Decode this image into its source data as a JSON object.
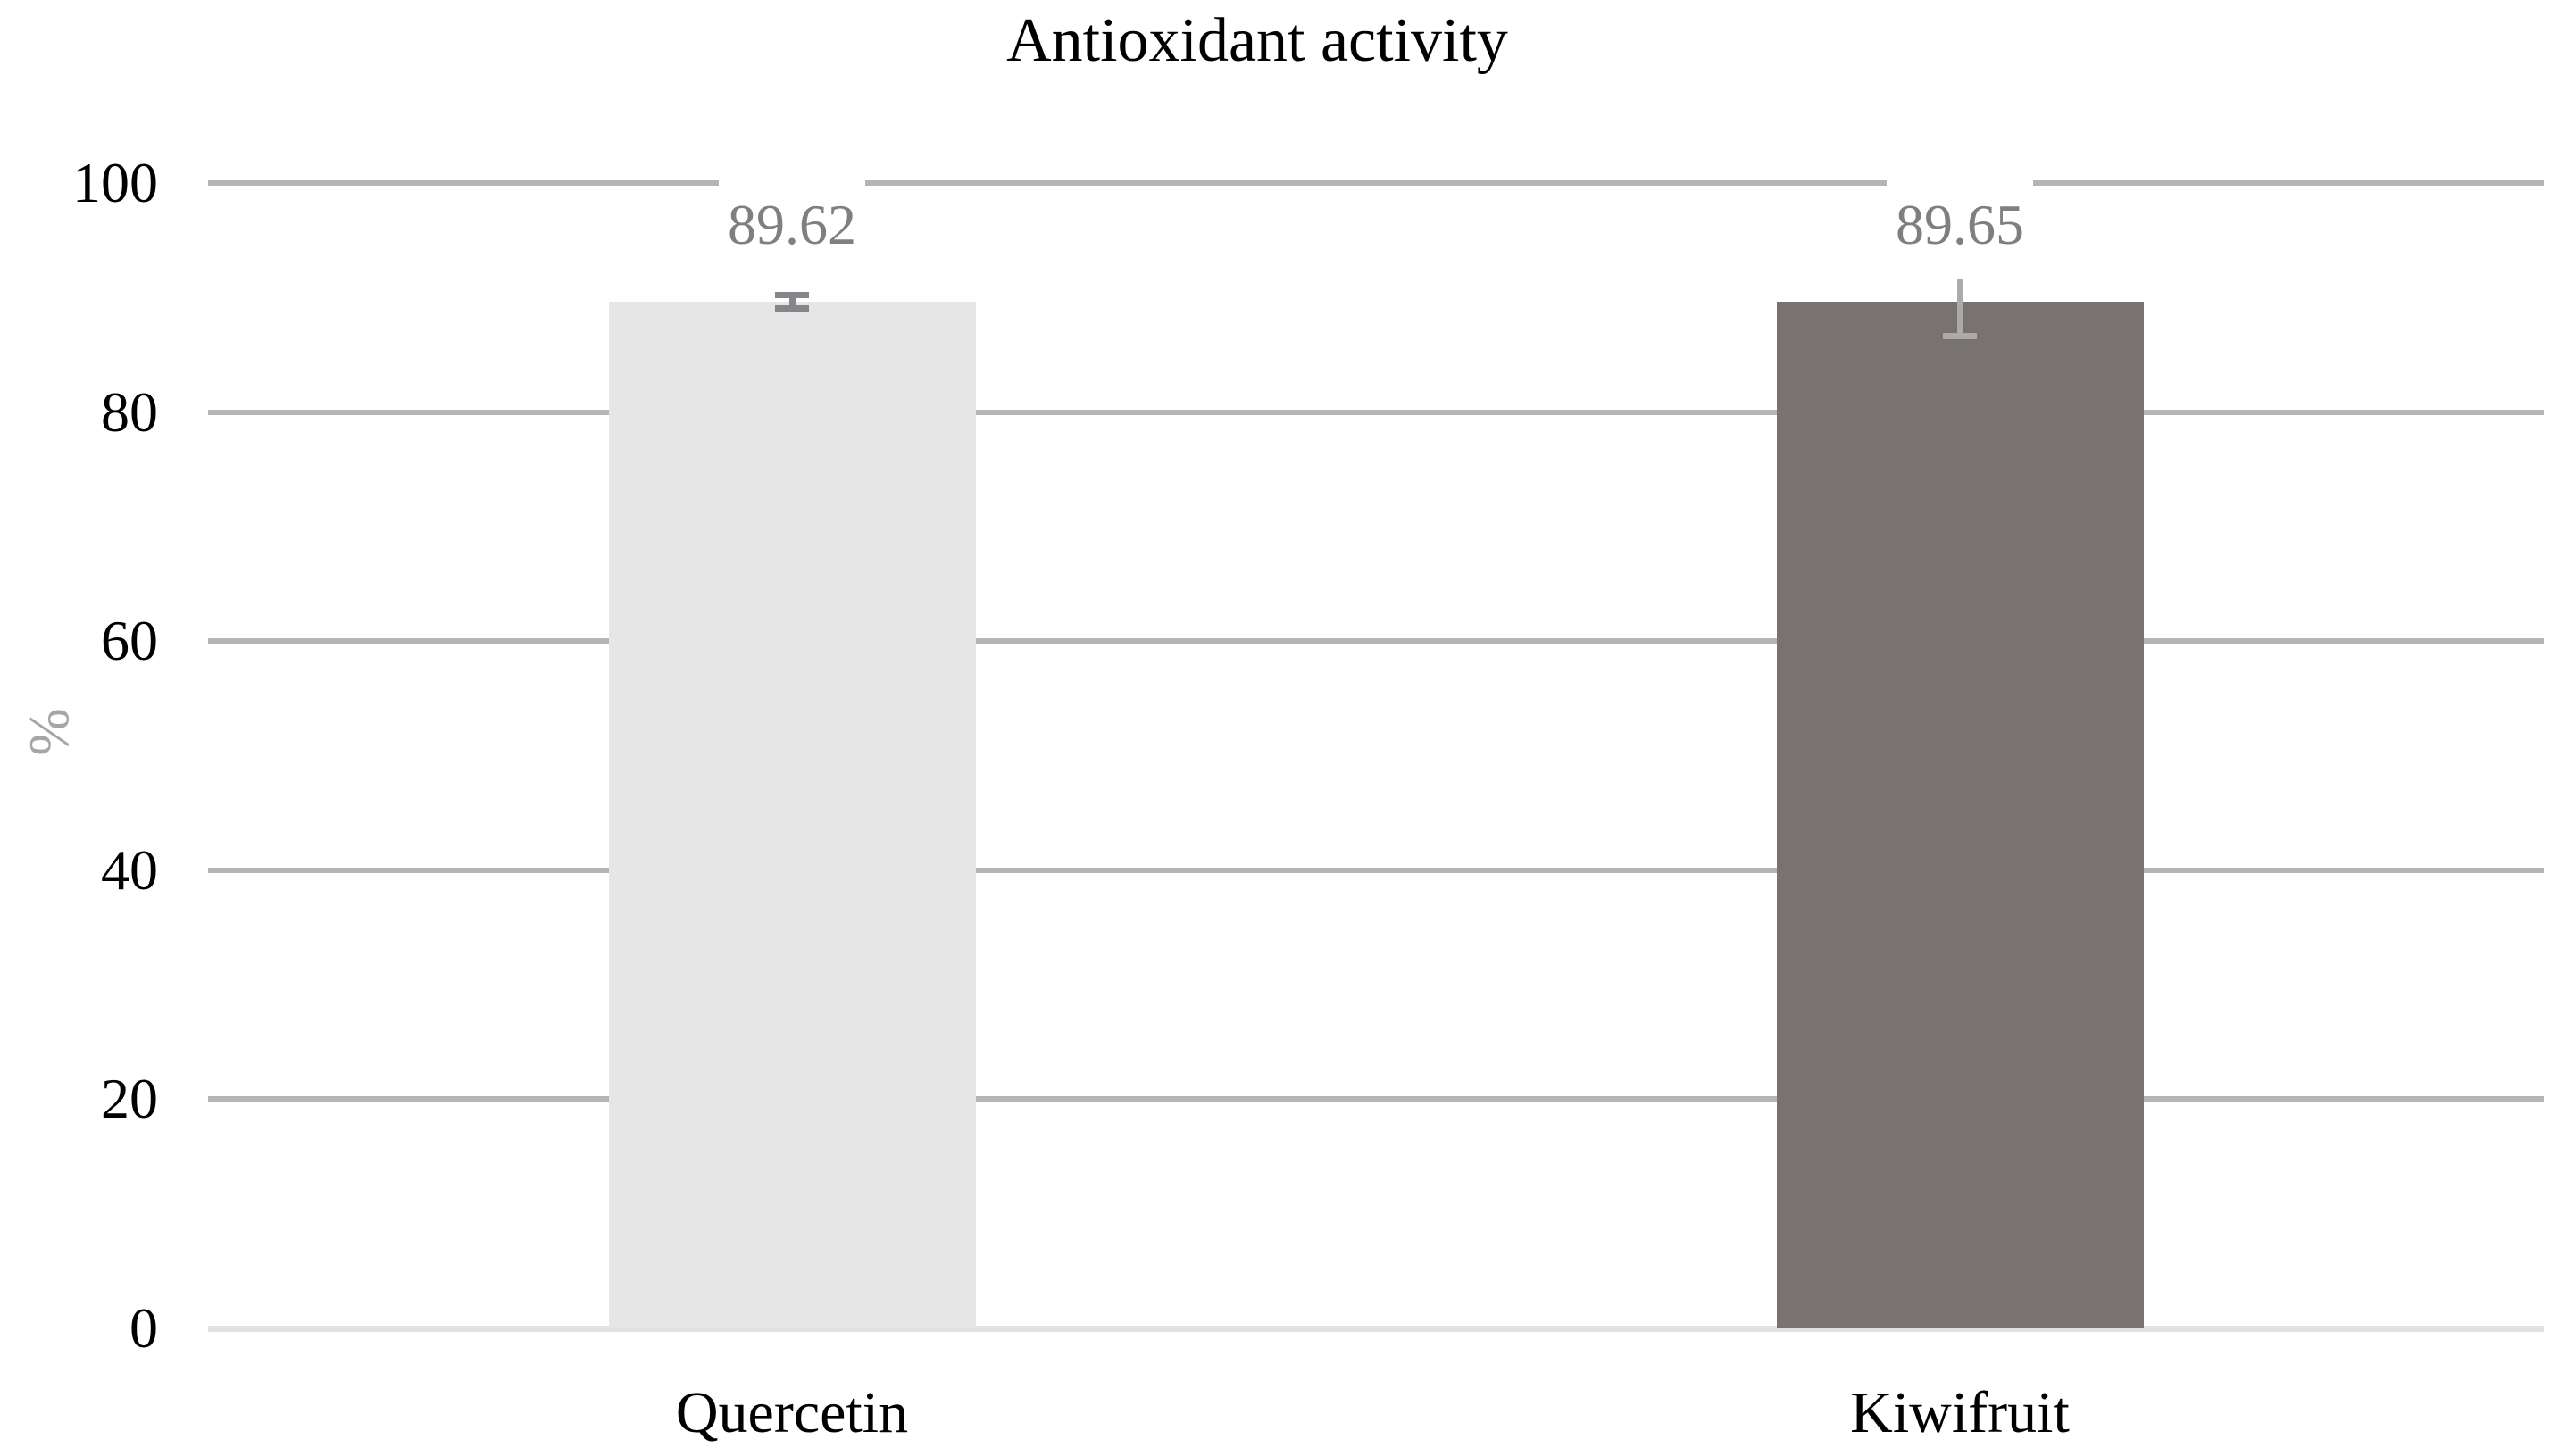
{
  "page": {
    "background": "#ffffff"
  },
  "chart_data": {
    "type": "bar",
    "title": "Antioxidant activity",
    "ylabel": "%",
    "xlabel": "",
    "categories": [
      "Quercetin",
      "Kiwifruit"
    ],
    "values": [
      89.62,
      89.65
    ],
    "data_labels": [
      "89.62",
      "89.65"
    ],
    "ylim": [
      0,
      100
    ],
    "yticks": [
      0,
      20,
      40,
      60,
      80,
      100
    ],
    "grid": "horizontal",
    "legend": "none",
    "bar_colors": [
      "#e7e6e6",
      "#787271"
    ],
    "error_bars": [
      {
        "plus": 0.55,
        "minus": 0.55,
        "cap_top": true,
        "cap_bottom": true,
        "color": "#85858a"
      },
      {
        "plus": 1.95,
        "minus": 3.0,
        "cap_top": false,
        "cap_bottom": true,
        "color": "#ababab"
      }
    ],
    "colors": {
      "title": "#000000",
      "tick_labels": "#000000",
      "category_labels": "#000000",
      "data_labels": "#7f7f7f",
      "axis_title": "#a6a6a6",
      "gridline": "#b5b5b5",
      "axis_line": "#e2e2e2"
    }
  }
}
